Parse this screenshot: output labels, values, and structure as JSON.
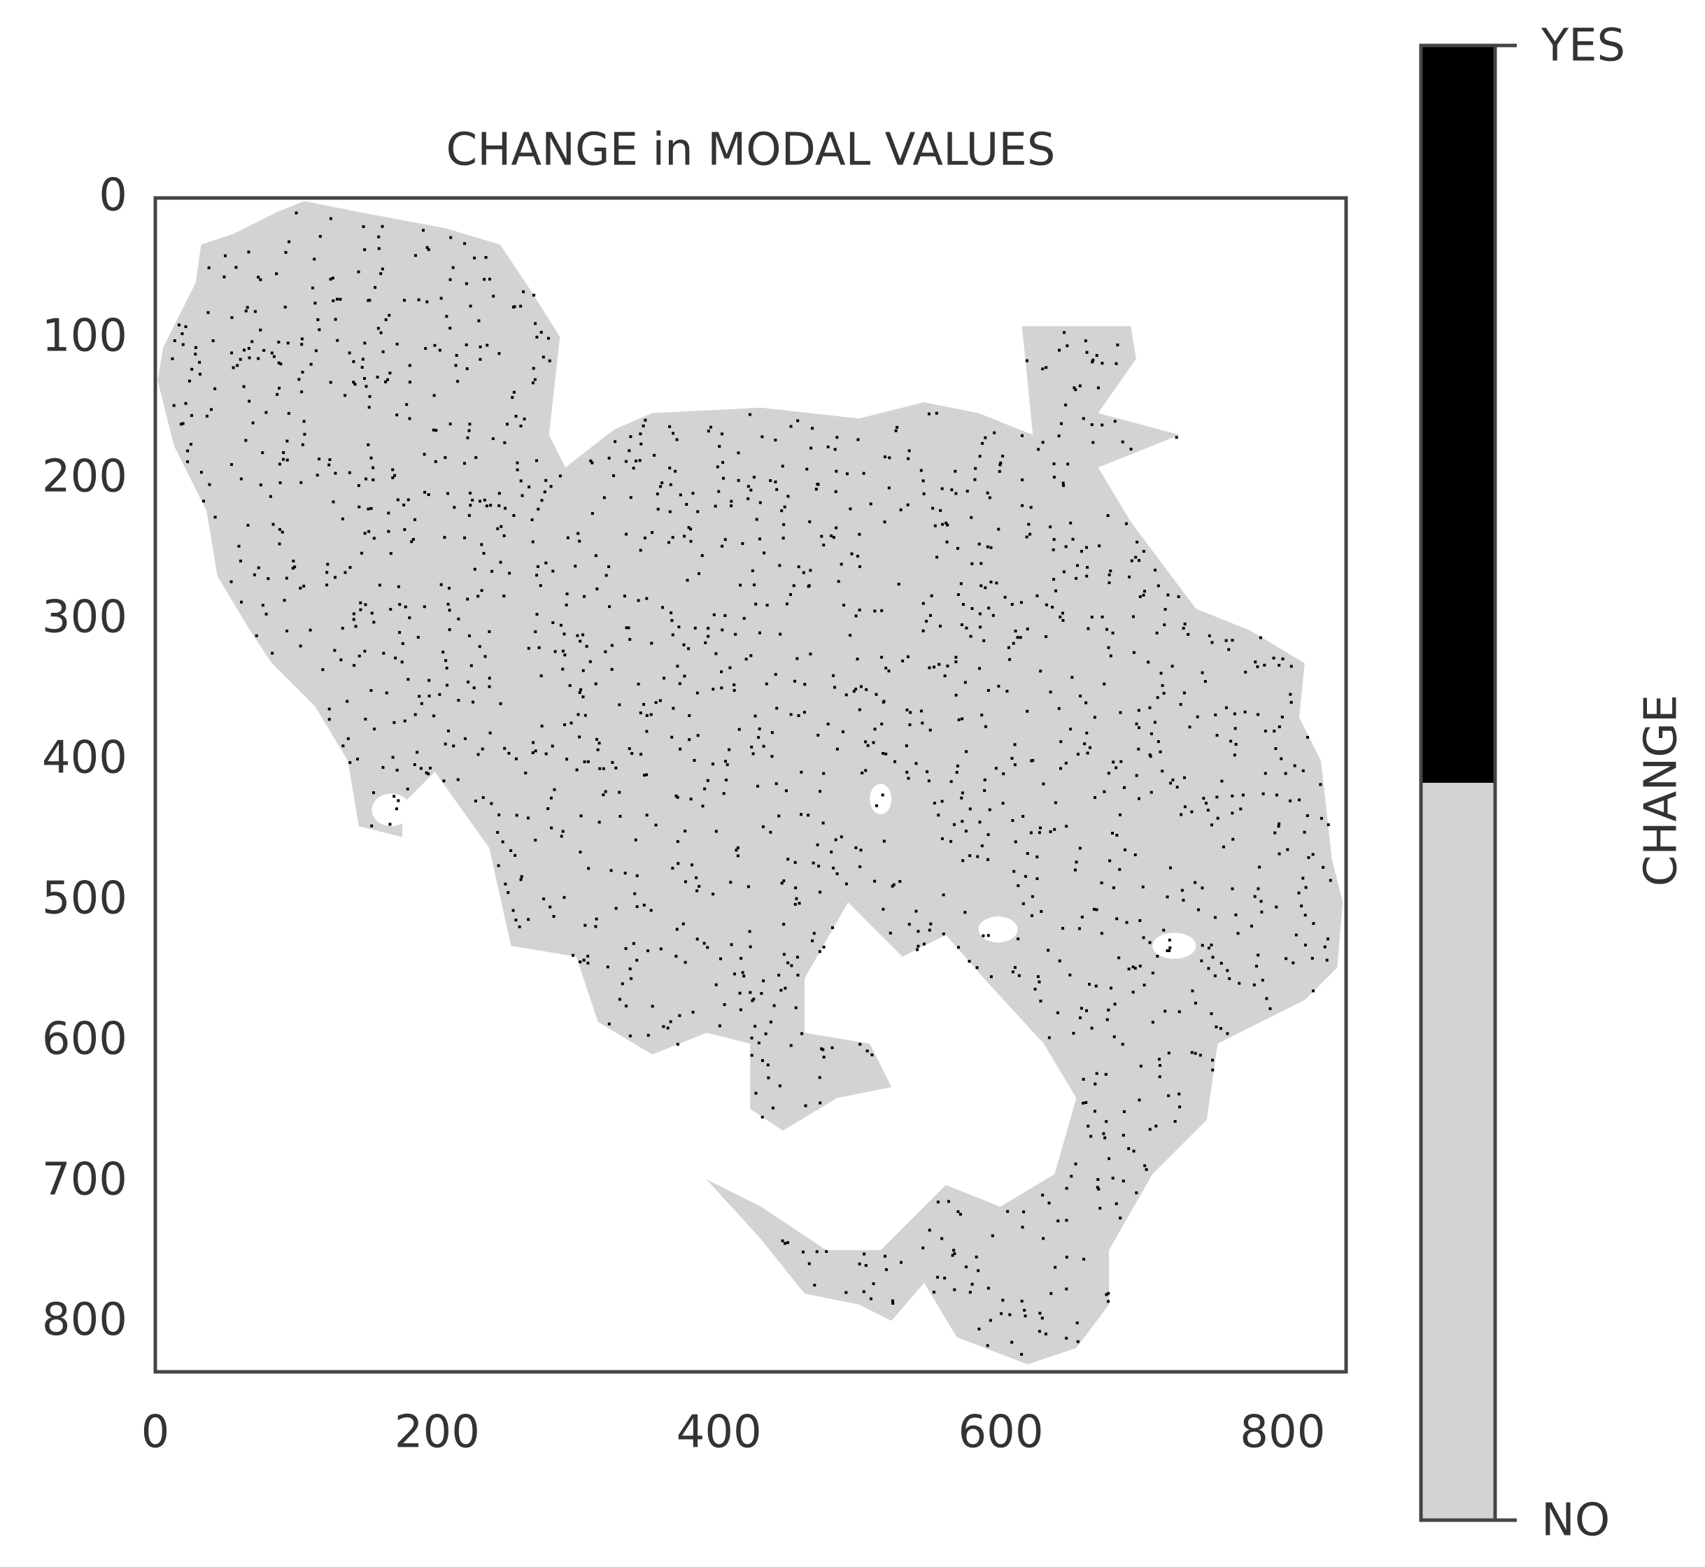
{
  "chart_data": {
    "type": "image",
    "title": "CHANGE in MODAL VALUES",
    "xlim": [
      0,
      845
    ],
    "ylim": [
      835,
      0
    ],
    "xticks": [
      0,
      200,
      400,
      600,
      800
    ],
    "yticks": [
      0,
      100,
      200,
      300,
      400,
      500,
      600,
      700,
      800
    ],
    "colorbar": {
      "label": "CHANGE",
      "lim": [
        0,
        1
      ],
      "ticks": [
        {
          "value": 0,
          "label": "NO"
        },
        {
          "value": 1,
          "label": "YES"
        }
      ],
      "colors": [
        "#d3d3d3",
        "#000000"
      ]
    }
  }
}
